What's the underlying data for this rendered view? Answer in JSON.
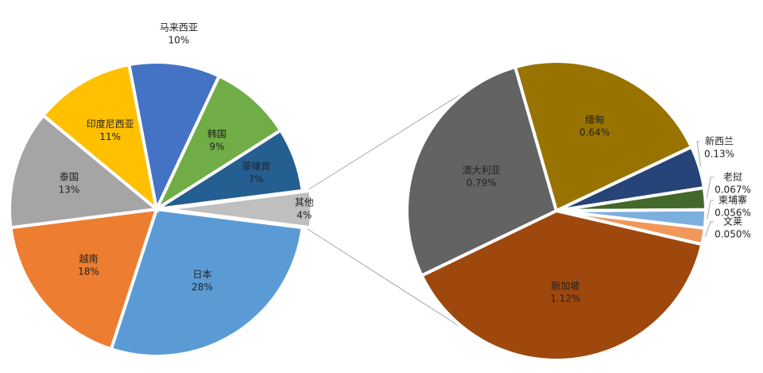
{
  "chart_data": [
    {
      "type": "pie",
      "categories": [
        "马来西亚",
        "韩国",
        "菲律宾",
        "其他",
        "日本",
        "越南",
        "泰国",
        "印度尼西亚"
      ],
      "values": [
        10,
        9,
        7,
        4,
        28,
        18,
        13,
        11
      ],
      "value_labels": [
        "10%",
        "9%",
        "7%",
        "4%",
        "28%",
        "18%",
        "13%",
        "11%"
      ],
      "colors": [
        "#4472c4",
        "#70ad47",
        "#255e91",
        "#bfbfbf",
        "#5b9bd5",
        "#ed7d31",
        "#a5a5a5",
        "#ffc000"
      ]
    },
    {
      "type": "pie",
      "categories": [
        "缅甸",
        "新西兰",
        "老挝",
        "柬埔寨",
        "文莱",
        "新加坡",
        "澳大利亚"
      ],
      "values": [
        0.64,
        0.13,
        0.067,
        0.056,
        0.05,
        1.12,
        0.79
      ],
      "value_labels": [
        "0.64%",
        "0.13%",
        "0.067%",
        "0.056%",
        "0.050%",
        "1.12%",
        "0.79%"
      ],
      "colors": [
        "#997300",
        "#264478",
        "#43682b",
        "#7cafdd",
        "#f1975a",
        "#9e480e",
        "#636363"
      ]
    }
  ]
}
